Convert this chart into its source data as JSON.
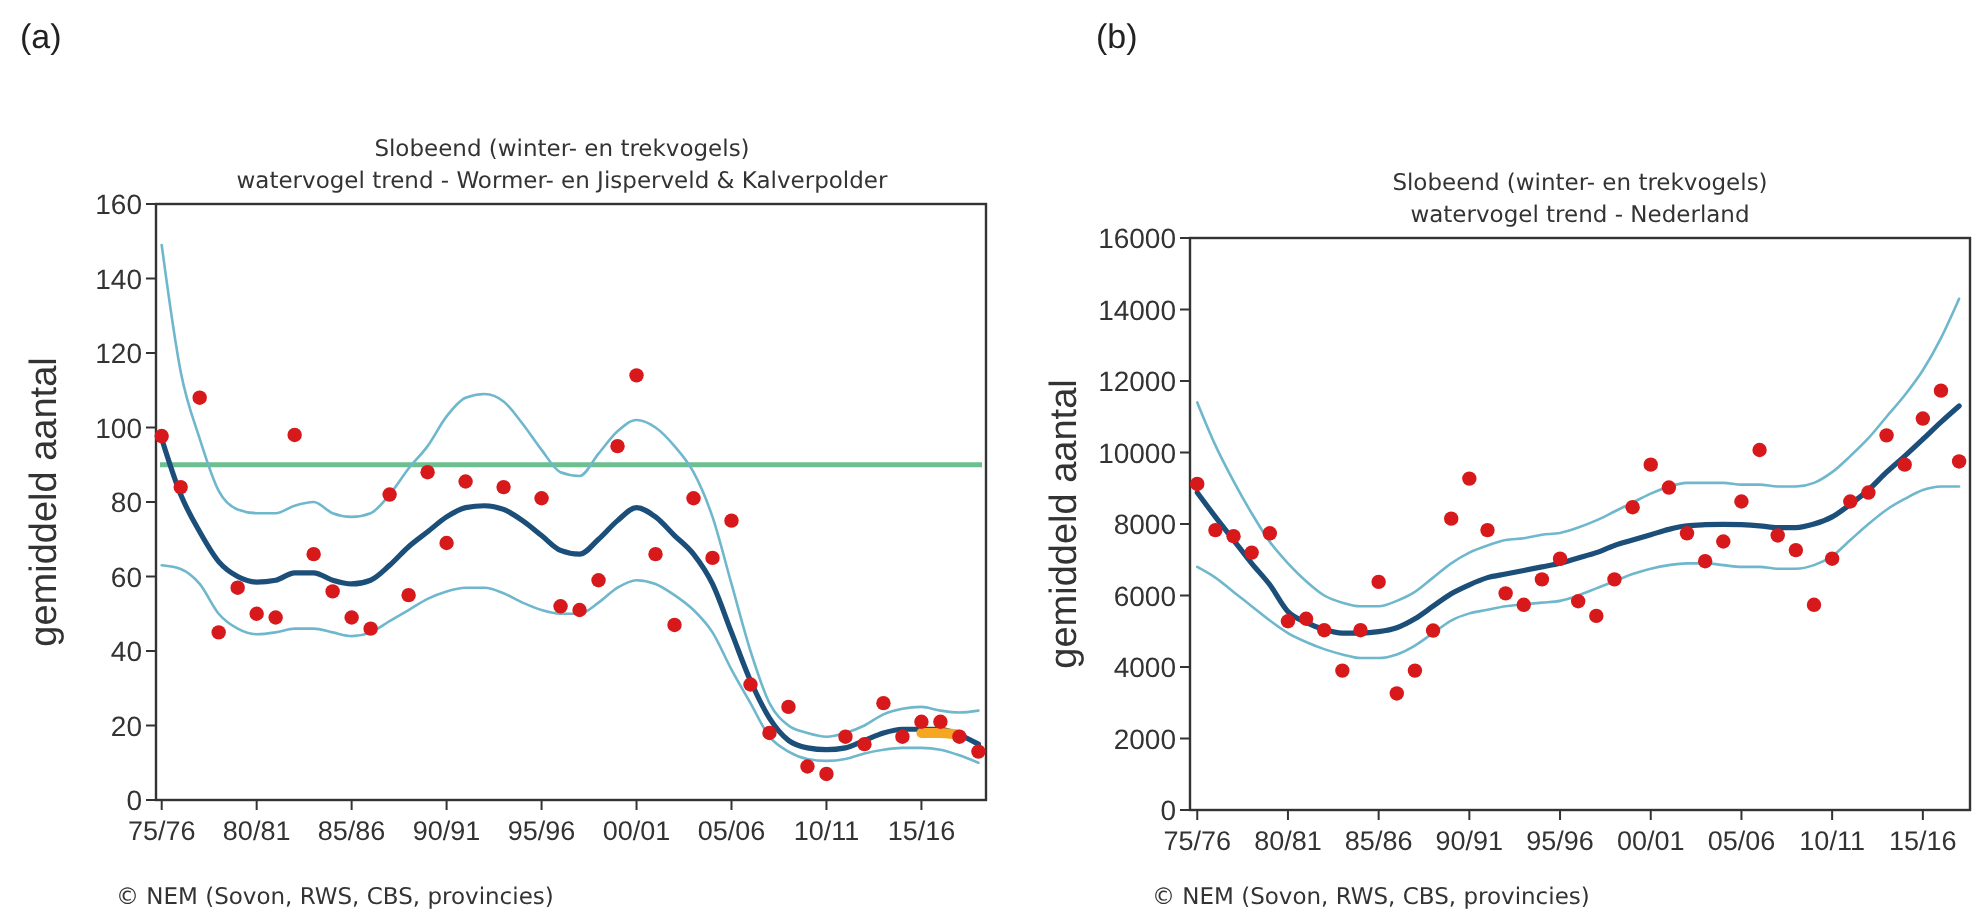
{
  "chart_data": [
    {
      "type": "line",
      "title": "Slobeend (winter- en trekvogels)",
      "subtitle": "watervogel trend - Wormer- en Jisperveld & Kalverpolder",
      "ylabel": "gemiddeld aantal",
      "annotations": [
        "(a)",
        "© NEM (Sovon, RWS, CBS, provincies)"
      ],
      "categories": [
        "75/76",
        null,
        null,
        null,
        null,
        "80/81",
        null,
        null,
        null,
        null,
        "85/86",
        null,
        null,
        null,
        null,
        "90/91",
        null,
        null,
        null,
        null,
        "95/96",
        null,
        null,
        null,
        null,
        "00/01",
        null,
        null,
        null,
        null,
        "05/06",
        null,
        null,
        null,
        null,
        "10/11",
        null,
        null,
        null,
        null,
        "15/16",
        null,
        null,
        null
      ],
      "ylim": [
        0,
        160
      ],
      "yticks": [
        0,
        20,
        40,
        60,
        80,
        100,
        120,
        140,
        160
      ],
      "ref_lines": [
        {
          "axis": "y",
          "value": 90,
          "color": "#6dbf8f"
        }
      ],
      "series": [
        {
          "color": "#6fb7cc",
          "values": [
            149,
            115,
            97,
            83,
            78,
            77,
            77,
            79,
            80,
            77,
            76,
            77,
            82,
            89,
            95,
            103,
            108,
            109,
            107,
            101,
            94,
            88,
            87,
            93,
            99,
            102,
            100,
            95,
            88,
            76,
            58,
            40,
            26,
            20,
            18,
            17,
            18,
            20,
            23,
            24.5,
            25,
            24,
            23.5,
            24
          ]
        },
        {
          "color": "#6fb7cc",
          "values": [
            63,
            62,
            58,
            50,
            46,
            44.5,
            45,
            46,
            46,
            45,
            44,
            45,
            48,
            51,
            54,
            56,
            57,
            57,
            55.5,
            53,
            51,
            50,
            50,
            53,
            57,
            59,
            58,
            55,
            51,
            45,
            35,
            26,
            17,
            13,
            11,
            10.5,
            11,
            12.5,
            13.5,
            14,
            14,
            13.5,
            12,
            10
          ]
        },
        {
          "color": "#1b4f7a",
          "values": [
            97,
            82,
            72,
            64,
            60,
            58.5,
            59,
            61,
            61,
            59,
            58,
            59,
            63,
            68,
            72,
            76,
            78.5,
            79,
            78,
            75,
            71,
            67,
            66,
            70,
            75,
            78.5,
            76,
            71,
            66,
            58,
            45,
            32,
            22,
            16,
            14,
            13.5,
            14,
            16,
            18,
            19,
            19,
            19,
            17.5,
            15
          ]
        },
        {
          "color": "#f5a623",
          "values": [
            null,
            null,
            null,
            null,
            null,
            null,
            null,
            null,
            null,
            null,
            null,
            null,
            null,
            null,
            null,
            null,
            null,
            null,
            null,
            null,
            null,
            null,
            null,
            null,
            null,
            null,
            null,
            null,
            null,
            null,
            null,
            null,
            null,
            null,
            null,
            null,
            null,
            null,
            null,
            null,
            18,
            18,
            17.5,
            null
          ]
        },
        {
          "type": "scatter",
          "color": "#d7191c",
          "marker": "circle",
          "values": [
            97.7,
            84,
            108,
            45,
            57,
            50,
            49,
            98,
            66,
            56,
            49,
            46,
            82,
            55,
            88,
            69,
            85.5,
            null,
            84,
            null,
            81,
            52,
            51,
            59,
            95,
            114,
            66,
            47,
            81,
            65,
            75,
            31,
            18,
            25,
            9,
            7,
            17,
            15,
            26,
            17,
            21,
            21,
            17,
            13
          ]
        }
      ]
    },
    {
      "type": "line",
      "title": "Slobeend (winter- en trekvogels)",
      "subtitle": "watervogel trend - Nederland",
      "ylabel": "gemiddeld aantal",
      "annotations": [
        "(b)",
        "© NEM (Sovon, RWS, CBS, provincies)"
      ],
      "categories": [
        "75/76",
        null,
        null,
        null,
        null,
        "80/81",
        null,
        null,
        null,
        null,
        "85/86",
        null,
        null,
        null,
        null,
        "90/91",
        null,
        null,
        null,
        null,
        "95/96",
        null,
        null,
        null,
        null,
        "00/01",
        null,
        null,
        null,
        null,
        "05/06",
        null,
        null,
        null,
        null,
        "10/11",
        null,
        null,
        null,
        null,
        "15/16",
        null,
        null
      ],
      "ylim": [
        0,
        16000
      ],
      "yticks": [
        0,
        2000,
        4000,
        6000,
        8000,
        10000,
        12000,
        14000,
        16000
      ],
      "series": [
        {
          "color": "#6fb7cc",
          "values": [
            11400,
            10200,
            9200,
            8300,
            7500,
            6900,
            6400,
            6000,
            5800,
            5700,
            5700,
            5850,
            6100,
            6500,
            6900,
            7200,
            7400,
            7550,
            7600,
            7700,
            7750,
            7900,
            8100,
            8350,
            8600,
            8850,
            9050,
            9150,
            9150,
            9150,
            9100,
            9100,
            9050,
            9050,
            9150,
            9450,
            9900,
            10400,
            11000,
            11600,
            12300,
            13200,
            14300
          ]
        },
        {
          "color": "#6fb7cc",
          "values": [
            6800,
            6500,
            6100,
            5700,
            5300,
            4950,
            4700,
            4500,
            4350,
            4250,
            4250,
            4350,
            4600,
            4950,
            5300,
            5500,
            5600,
            5700,
            5750,
            5800,
            5850,
            6000,
            6200,
            6400,
            6600,
            6750,
            6850,
            6900,
            6900,
            6850,
            6800,
            6800,
            6750,
            6750,
            6850,
            7100,
            7550,
            8000,
            8400,
            8700,
            8950,
            9050,
            9050
          ]
        },
        {
          "color": "#1b4f7a",
          "values": [
            8880,
            8200,
            7550,
            6900,
            6300,
            5550,
            5250,
            5050,
            4950,
            4950,
            4990,
            5100,
            5350,
            5700,
            6050,
            6300,
            6500,
            6600,
            6700,
            6800,
            6900,
            7050,
            7200,
            7400,
            7550,
            7700,
            7850,
            7950,
            7980,
            7990,
            7980,
            7950,
            7900,
            7900,
            8000,
            8200,
            8550,
            8950,
            9450,
            9900,
            10370,
            10850,
            11300
          ]
        },
        {
          "type": "scatter",
          "color": "#d7191c",
          "marker": "circle",
          "values": [
            9120,
            7830,
            7660,
            7200,
            7740,
            5280,
            5350,
            5030,
            3900,
            5030,
            6380,
            3260,
            3900,
            5020,
            8150,
            9270,
            7830,
            6060,
            5740,
            6450,
            7030,
            5840,
            5430,
            6450,
            8470,
            9660,
            9020,
            7740,
            6960,
            7510,
            8630,
            10070,
            7680,
            7270,
            5740,
            7030,
            8630,
            8880,
            10480,
            9660,
            10950,
            11730,
            9750
          ]
        }
      ]
    }
  ]
}
